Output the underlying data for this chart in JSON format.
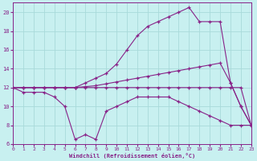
{
  "xlabel": "Windchill (Refroidissement éolien,°C)",
  "bg_color": "#c8f0f0",
  "grid_color": "#a8dada",
  "line_color": "#882288",
  "xlim": [
    0,
    23
  ],
  "ylim": [
    6,
    21
  ],
  "yticks": [
    6,
    8,
    10,
    12,
    14,
    16,
    18,
    20
  ],
  "xticks": [
    0,
    1,
    2,
    3,
    4,
    5,
    6,
    7,
    8,
    9,
    10,
    11,
    12,
    13,
    14,
    15,
    16,
    17,
    18,
    19,
    20,
    21,
    22,
    23
  ],
  "lines": [
    {
      "x": [
        0,
        1,
        2,
        3,
        4,
        5,
        6,
        7,
        8,
        9,
        10,
        11,
        12,
        13,
        14,
        15,
        16,
        17,
        18,
        19,
        20,
        21,
        22,
        23
      ],
      "y": [
        12,
        12,
        12,
        12,
        12,
        12,
        12,
        12,
        12,
        12,
        12,
        12,
        12,
        12,
        12,
        12,
        12,
        12,
        12,
        12,
        12,
        12,
        12,
        8
      ]
    },
    {
      "x": [
        0,
        1,
        2,
        3,
        4,
        5,
        6,
        7,
        8,
        9,
        10,
        11,
        12,
        13,
        14,
        15,
        16,
        17,
        18,
        19,
        20,
        21,
        22,
        23
      ],
      "y": [
        12,
        11.5,
        11.5,
        11.5,
        11,
        10,
        6.5,
        7,
        6.5,
        9.5,
        10,
        10.5,
        11,
        11,
        11,
        11,
        10.5,
        10,
        9.5,
        9,
        8.5,
        8,
        8,
        8
      ]
    },
    {
      "x": [
        0,
        1,
        2,
        3,
        4,
        5,
        6,
        7,
        8,
        9,
        10,
        11,
        12,
        13,
        14,
        15,
        16,
        17,
        18,
        19,
        20,
        21,
        22,
        23
      ],
      "y": [
        12,
        12,
        12,
        12,
        12,
        12,
        12,
        12.1,
        12.2,
        12.4,
        12.6,
        12.8,
        13,
        13.2,
        13.4,
        13.6,
        13.8,
        14,
        14.2,
        14.4,
        14.6,
        12.5,
        10,
        8
      ]
    },
    {
      "x": [
        0,
        1,
        2,
        3,
        4,
        5,
        6,
        7,
        8,
        9,
        10,
        11,
        12,
        13,
        14,
        15,
        16,
        17,
        18,
        19,
        20,
        21,
        22,
        23
      ],
      "y": [
        12,
        12,
        12,
        12,
        12,
        12,
        12,
        12.5,
        13,
        13.5,
        14.5,
        16,
        17.5,
        18.5,
        19,
        19.5,
        20,
        20.5,
        19,
        19,
        19,
        12.5,
        10,
        8
      ]
    }
  ]
}
